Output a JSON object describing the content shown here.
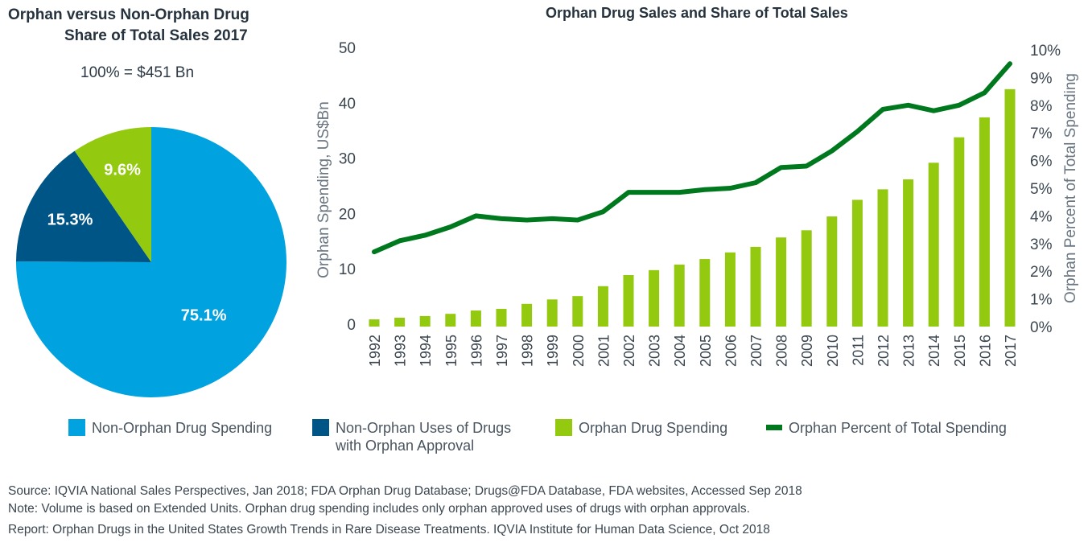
{
  "pie_title_line1": "Orphan versus Non-Orphan Drug",
  "pie_title_line2": "Share of Total Sales 2017",
  "pie_total": "100% = $451 Bn",
  "bar_title": "Orphan Drug Sales and Share of Total Sales",
  "colors": {
    "non_orphan": "#00a3e0",
    "non_orphan_uses": "#005587",
    "orphan": "#93c90f",
    "orphan_percent": "#00781e",
    "text": "#2d3a45"
  },
  "legend": [
    {
      "label": "Non-Orphan Drug Spending",
      "type": "swatch",
      "color": "#00a3e0"
    },
    {
      "label": "Non-Orphan Uses of Drugs with Orphan Approval",
      "type": "swatch",
      "color": "#005587"
    },
    {
      "label": "Orphan Drug Spending",
      "type": "swatch",
      "color": "#93c90f"
    },
    {
      "label": "Orphan Percent of Total Spending",
      "type": "line",
      "color": "#00781e"
    }
  ],
  "notes": {
    "source": "Source: IQVIA National Sales Perspectives, Jan 2018; FDA Orphan Drug Database;  Drugs@FDA Database, FDA websites, Accessed Sep 2018",
    "note": "Note: Volume is based on Extended Units. Orphan drug spending includes only orphan approved uses of drugs with orphan approvals.",
    "report": "Report: Orphan Drugs in the United States Growth Trends in Rare Disease Treatments. IQVIA Institute for Human Data Science, Oct 2018"
  },
  "chart_data": [
    {
      "type": "pie",
      "title": "Orphan versus Non-Orphan Drug Share of Total Sales 2017",
      "subtitle": "100% = $451 Bn",
      "slices": [
        {
          "name": "Non-Orphan Drug Spending",
          "value": 75.1,
          "label": "75.1%",
          "color": "#00a3e0"
        },
        {
          "name": "Non-Orphan Uses of Drugs with Orphan Approval",
          "value": 15.3,
          "label": "15.3%",
          "color": "#005587"
        },
        {
          "name": "Orphan Drug Spending",
          "value": 9.6,
          "label": "9.6%",
          "color": "#93c90f"
        }
      ],
      "start_angle": "12 o'clock, clockwise"
    },
    {
      "type": "bar",
      "title": "Orphan Drug Sales and Share of Total Sales",
      "xlabel": "",
      "ylabel": "Orphan Spending, US$Bn",
      "y2label": "Orphan Percent of Total Spending",
      "ylim": [
        0,
        50
      ],
      "y2lim": [
        0,
        10
      ],
      "yticks": [
        "0",
        "10",
        "20",
        "30",
        "40",
        "50"
      ],
      "y2ticks": [
        "0%",
        "1%",
        "2%",
        "3%",
        "4%",
        "5%",
        "6%",
        "7%",
        "8%",
        "9%",
        "10%"
      ],
      "grid": false,
      "categories": [
        "1992",
        "1993",
        "1994",
        "1995",
        "1996",
        "1997",
        "1998",
        "1999",
        "2000",
        "2001",
        "2002",
        "2003",
        "2004",
        "2005",
        "2006",
        "2007",
        "2008",
        "2009",
        "2010",
        "2011",
        "2012",
        "2013",
        "2014",
        "2015",
        "2016",
        "2017"
      ],
      "series": [
        {
          "name": "Orphan Drug Spending",
          "type": "bar",
          "axis": "left",
          "color": "#93c90f",
          "values": [
            1.3,
            1.6,
            1.9,
            2.3,
            2.9,
            3.2,
            4.1,
            4.9,
            5.5,
            7.3,
            9.3,
            10.2,
            11.2,
            12.2,
            13.4,
            14.4,
            16.1,
            17.4,
            19.9,
            22.9,
            24.8,
            26.6,
            29.6,
            34.2,
            37.8,
            42.9
          ]
        },
        {
          "name": "Orphan Percent of Total Spending",
          "type": "line",
          "axis": "right",
          "color": "#00781e",
          "values": [
            2.7,
            3.1,
            3.3,
            3.6,
            4.0,
            3.9,
            3.85,
            3.9,
            3.85,
            4.15,
            4.85,
            4.85,
            4.85,
            4.95,
            5.0,
            5.2,
            5.75,
            5.8,
            6.35,
            7.05,
            7.85,
            8.0,
            7.8,
            8.0,
            8.45,
            9.5
          ]
        }
      ]
    }
  ]
}
